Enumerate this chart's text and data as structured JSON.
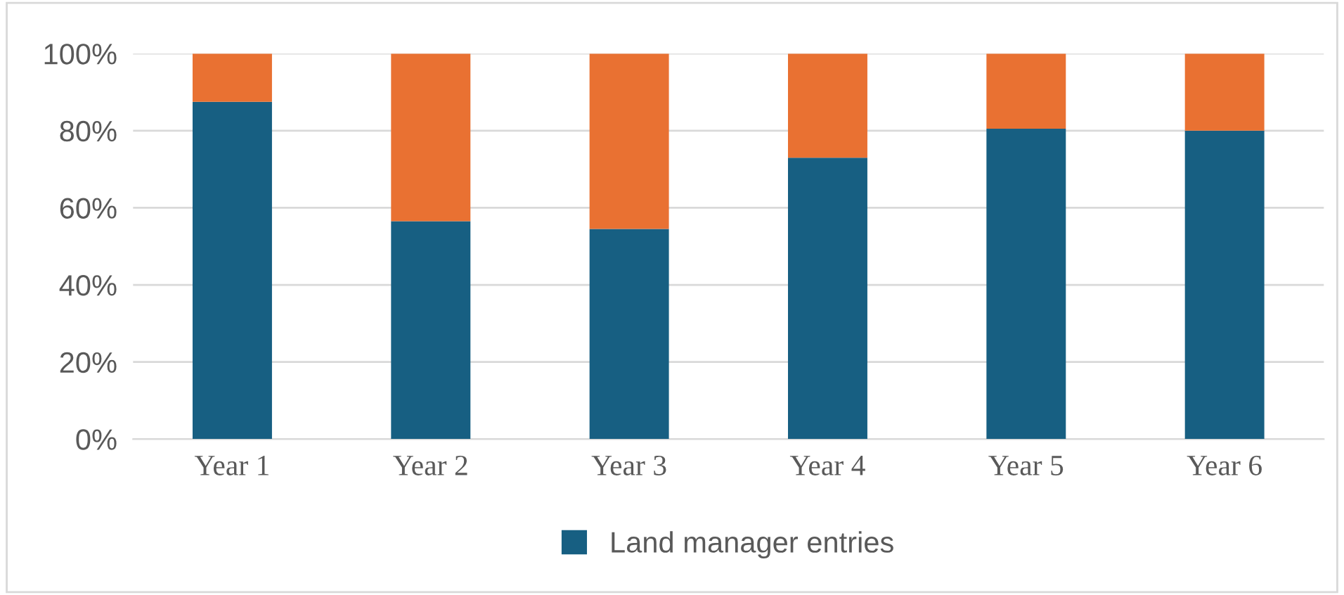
{
  "chart_data": {
    "type": "bar",
    "stacked": true,
    "categories": [
      "Year 1",
      "Year 2",
      "Year 3",
      "Year 4",
      "Year 5",
      "Year 6"
    ],
    "series": [
      {
        "name": "Land manager entries",
        "color": "#175f82",
        "values": [
          87.5,
          56.5,
          54.5,
          73,
          80.5,
          80
        ]
      },
      {
        "color": "#e97132",
        "values": [
          12.5,
          43.5,
          45.5,
          27,
          19.5,
          20
        ]
      }
    ],
    "ylim": [
      0,
      100
    ],
    "yticks": [
      {
        "value": 0,
        "label": "0%"
      },
      {
        "value": 20,
        "label": "20%"
      },
      {
        "value": 40,
        "label": "40%"
      },
      {
        "value": 60,
        "label": "60%"
      },
      {
        "value": 80,
        "label": "80%"
      },
      {
        "value": 100,
        "label": "100%"
      }
    ],
    "grid": "y",
    "legend": "bottom"
  }
}
